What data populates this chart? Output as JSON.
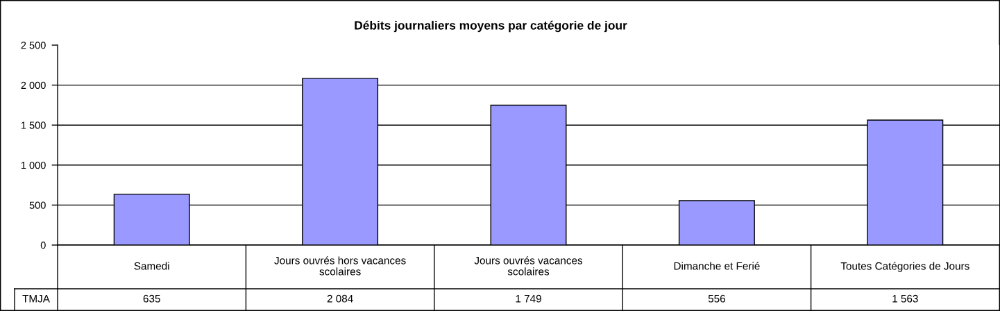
{
  "chart_data": {
    "type": "bar",
    "title": "Débits journaliers moyens par catégorie de jour",
    "categories": [
      "Samedi",
      "Jours ouvrés hors vacances scolaires",
      "Jours ouvrés vacances scolaires",
      "Dimanche et Ferié",
      "Toutes Catégories de Jours"
    ],
    "series": [
      {
        "name": "TMJA",
        "color": "#9999ff",
        "values": [
          635,
          2084,
          1749,
          556,
          1563
        ],
        "value_labels": [
          "635",
          "2 084",
          "1 749",
          "556",
          "1 563"
        ]
      }
    ],
    "ylim": [
      0,
      2500
    ],
    "yticks": [
      0,
      500,
      {
        "value": 1000,
        "label": "1 000"
      },
      {
        "value": 1500,
        "label": "1 500"
      },
      {
        "value": 2000,
        "label": "2 000"
      },
      {
        "value": 2500,
        "label": "2 500"
      }
    ],
    "grid": "y"
  }
}
